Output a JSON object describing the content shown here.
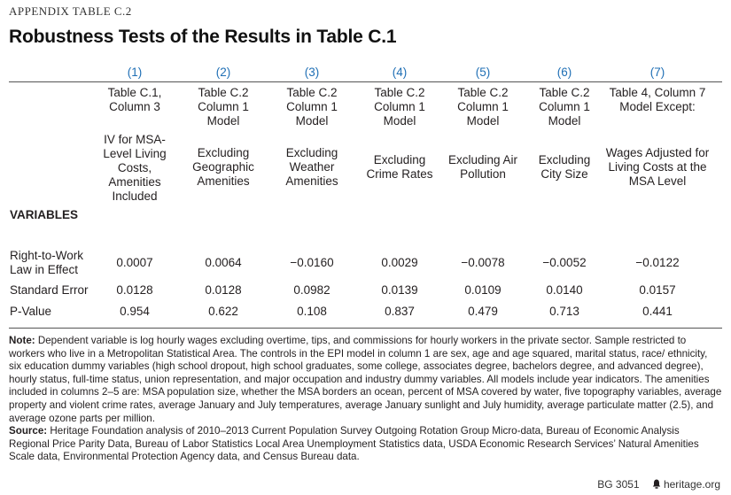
{
  "appendix_label": "APPENDIX TABLE C.2",
  "title": "Robustness Tests of the Results in Table C.1",
  "columns": [
    {
      "num": "(1)",
      "model": "Table C.1, Column 3",
      "desc": "IV for MSA-Level Living Costs, Amenities Included"
    },
    {
      "num": "(2)",
      "model": "Table C.2 Column 1 Model",
      "desc": "Excluding Geographic Amenities"
    },
    {
      "num": "(3)",
      "model": "Table C.2 Column 1 Model",
      "desc": "Excluding Weather Amenities"
    },
    {
      "num": "(4)",
      "model": "Table C.2 Column 1 Model",
      "desc": "Excluding Crime Rates"
    },
    {
      "num": "(5)",
      "model": "Table C.2 Column 1 Model",
      "desc": "Excluding Air Pollution"
    },
    {
      "num": "(6)",
      "model": "Table C.2 Column 1 Model",
      "desc": "Excluding City Size"
    },
    {
      "num": "(7)",
      "model": "Table 4, Column 7 Model Except:",
      "desc": "Wages Adjusted for Living Costs at the MSA Level"
    }
  ],
  "variables_header": "VARIABLES",
  "rows": [
    {
      "label": "Right-to-Work Law in Effect",
      "values": [
        "0.0007",
        "0.0064",
        "−0.0160",
        "0.0029",
        "−0.0078",
        "−0.0052",
        "−0.0122"
      ]
    },
    {
      "label": "Standard Error",
      "values": [
        "0.0128",
        "0.0128",
        "0.0982",
        "0.0139",
        "0.0109",
        "0.0140",
        "0.0157"
      ]
    },
    {
      "label": "P-Value",
      "values": [
        "0.954",
        "0.622",
        "0.108",
        "0.837",
        "0.479",
        "0.713",
        "0.441"
      ]
    }
  ],
  "note_label": "Note:",
  "note_text": "Dependent variable is log hourly wages excluding overtime, tips, and commissions for hourly workers in the private sector. Sample restricted to workers who live in a Metropolitan Statistical Area. The controls in the EPI model in column 1 are sex, age and age squared, marital status, race/ ethnicity, six education dummy variables (high school dropout, high school graduates, some college, associates degree, bachelors degree, and advanced degree), hourly status, full-time status, union representation, and major occupation and industry dummy variables. All models include year indicators. The amenities included in columns 2–5 are: MSA population size, whether the MSA borders an ocean, percent of MSA covered by water, five topography variables, average property and violent crime rates, average January and July temperatures, average January sunlight and July humidity, average particulate matter (2.5), and average ozone parts per million.",
  "source_label": "Source:",
  "source_text": "Heritage Foundation analysis of 2010–2013 Current Population Survey Outgoing Rotation Group Micro-data, Bureau of Economic Analysis Regional Price Parity Data, Bureau of Labor Statistics Local Area Unemployment Statistics data, USDA Economic Research Services’ Natural Amenities Scale data, Environmental Protection Agency data, and Census Bureau data.",
  "footer": {
    "code": "BG 3051",
    "site": "heritage.org",
    "icon": "bell-icon"
  }
}
